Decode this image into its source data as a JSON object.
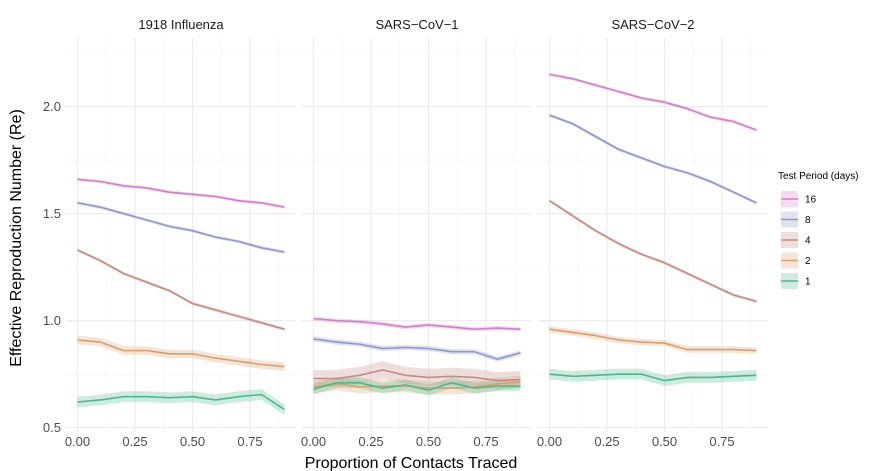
{
  "chart_data": {
    "type": "line",
    "xlabel": "Proportion of Contacts Traced",
    "ylabel": "Effective Reproduction Number (Re)",
    "xlim": [
      -0.05,
      0.95
    ],
    "ylim": [
      0.48,
      2.32
    ],
    "x_ticks": [
      "0.00",
      "0.25",
      "0.50",
      "0.75"
    ],
    "x_tick_values": [
      0,
      0.25,
      0.5,
      0.75
    ],
    "y_ticks": [
      "0.5",
      "1.0",
      "1.5",
      "2.0"
    ],
    "y_tick_values": [
      0.5,
      1.0,
      1.5,
      2.0
    ],
    "grid": true,
    "legend": {
      "title": "Test Period (days)",
      "position": "right",
      "entries": [
        {
          "label": "16",
          "color": "#d47fc9"
        },
        {
          "label": "8",
          "color": "#8f98c9"
        },
        {
          "label": "4",
          "color": "#c68b80"
        },
        {
          "label": "2",
          "color": "#d9a06e"
        },
        {
          "label": "1",
          "color": "#4cb88a"
        }
      ]
    },
    "x": [
      0,
      0.1,
      0.2,
      0.3,
      0.4,
      0.5,
      0.6,
      0.7,
      0.8,
      0.9
    ],
    "panels": [
      {
        "title": "1918 Influenza",
        "series": [
          {
            "name": "16",
            "color": "#d47fc9",
            "band": 0.008,
            "values": [
              1.66,
              1.65,
              1.63,
              1.62,
              1.6,
              1.59,
              1.58,
              1.56,
              1.55,
              1.53
            ]
          },
          {
            "name": "8",
            "color": "#8f98c9",
            "band": 0.008,
            "values": [
              1.55,
              1.53,
              1.5,
              1.47,
              1.44,
              1.42,
              1.39,
              1.37,
              1.34,
              1.32
            ]
          },
          {
            "name": "4",
            "color": "#c68b80",
            "band": 0.008,
            "values": [
              1.33,
              1.28,
              1.22,
              1.18,
              1.14,
              1.08,
              1.05,
              1.02,
              0.99,
              0.96
            ]
          },
          {
            "name": "2",
            "color": "#d9a06e",
            "band": 0.02,
            "values": [
              0.91,
              0.9,
              0.86,
              0.86,
              0.845,
              0.845,
              0.825,
              0.81,
              0.795,
              0.785
            ]
          },
          {
            "name": "1",
            "color": "#4cb88a",
            "band": 0.025,
            "values": [
              0.62,
              0.63,
              0.645,
              0.645,
              0.64,
              0.645,
              0.63,
              0.645,
              0.655,
              0.585
            ]
          }
        ]
      },
      {
        "title": "SARS−CoV−1",
        "series": [
          {
            "name": "16",
            "color": "#d47fc9",
            "band": 0.01,
            "values": [
              1.01,
              1.0,
              0.995,
              0.985,
              0.97,
              0.98,
              0.97,
              0.96,
              0.965,
              0.96
            ]
          },
          {
            "name": "8",
            "color": "#8f98c9",
            "band": 0.012,
            "values": [
              0.915,
              0.9,
              0.89,
              0.87,
              0.875,
              0.87,
              0.855,
              0.855,
              0.82,
              0.85
            ]
          },
          {
            "name": "4",
            "color": "#c68b80",
            "band": 0.04,
            "values": [
              0.73,
              0.73,
              0.745,
              0.77,
              0.745,
              0.735,
              0.74,
              0.735,
              0.72,
              0.725
            ]
          },
          {
            "name": "2",
            "color": "#d9a06e",
            "band": 0.03,
            "values": [
              0.69,
              0.705,
              0.69,
              0.695,
              0.695,
              0.685,
              0.685,
              0.69,
              0.705,
              0.715
            ]
          },
          {
            "name": "1",
            "color": "#4cb88a",
            "band": 0.025,
            "values": [
              0.68,
              0.71,
              0.71,
              0.685,
              0.7,
              0.675,
              0.71,
              0.685,
              0.695,
              0.695
            ]
          }
        ]
      },
      {
        "title": "SARS−CoV−2",
        "series": [
          {
            "name": "16",
            "color": "#d47fc9",
            "band": 0.008,
            "values": [
              2.15,
              2.13,
              2.1,
              2.07,
              2.04,
              2.02,
              1.99,
              1.95,
              1.93,
              1.89
            ]
          },
          {
            "name": "8",
            "color": "#8f98c9",
            "band": 0.008,
            "values": [
              1.96,
              1.92,
              1.86,
              1.8,
              1.76,
              1.72,
              1.69,
              1.65,
              1.6,
              1.55
            ]
          },
          {
            "name": "4",
            "color": "#c68b80",
            "band": 0.008,
            "values": [
              1.56,
              1.49,
              1.42,
              1.36,
              1.31,
              1.27,
              1.22,
              1.17,
              1.12,
              1.09
            ]
          },
          {
            "name": "2",
            "color": "#d9a06e",
            "band": 0.015,
            "values": [
              0.96,
              0.945,
              0.93,
              0.91,
              0.9,
              0.895,
              0.865,
              0.865,
              0.865,
              0.86
            ]
          },
          {
            "name": "1",
            "color": "#4cb88a",
            "band": 0.025,
            "values": [
              0.75,
              0.74,
              0.745,
              0.75,
              0.75,
              0.72,
              0.735,
              0.735,
              0.74,
              0.745
            ]
          }
        ]
      }
    ]
  }
}
